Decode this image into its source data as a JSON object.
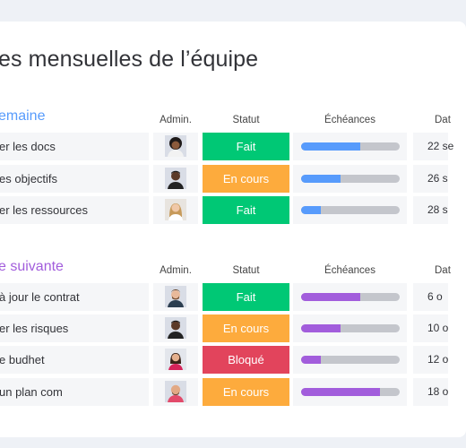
{
  "page": {
    "title": "es mensuelles de l’équipe"
  },
  "colors": {
    "done": "#00c875",
    "in_progress": "#fdab3d",
    "blocked": "#e2445c",
    "blue": "#579bfc",
    "purple": "#a25ddc"
  },
  "columns": {
    "owner": "Admin.",
    "status": "Statut",
    "deadline": "Échéances",
    "date": "Dat"
  },
  "sections": [
    {
      "title": "emaine",
      "color": "#579bfc",
      "rows": [
        {
          "task": "er les docs",
          "owner_icon": "avatar-woman-curly",
          "status": "Fait",
          "status_key": "done",
          "progress": 0.6,
          "date": "22 se"
        },
        {
          "task": "es objectifs",
          "owner_icon": "avatar-man-dark",
          "status": "En cours",
          "status_key": "in_progress",
          "progress": 0.4,
          "date": "26 s"
        },
        {
          "task": "er les ressources",
          "owner_icon": "avatar-woman-blonde",
          "status": "Fait",
          "status_key": "done",
          "progress": 0.2,
          "date": "28 s"
        }
      ]
    },
    {
      "title": "e suivante",
      "color": "#a25ddc",
      "rows": [
        {
          "task": "à jour le contrat",
          "owner_icon": "avatar-man-beard",
          "status": "Fait",
          "status_key": "done",
          "progress": 0.6,
          "date": "6 o"
        },
        {
          "task": "er les risques",
          "owner_icon": "avatar-man-dark",
          "status": "En cours",
          "status_key": "in_progress",
          "progress": 0.4,
          "date": "10 o"
        },
        {
          "task": "e budhet",
          "owner_icon": "avatar-woman-red",
          "status": "Bloqué",
          "status_key": "blocked",
          "progress": 0.2,
          "date": "12 o"
        },
        {
          "task": "un plan com",
          "owner_icon": "avatar-man-bald",
          "status": "En cours",
          "status_key": "in_progress",
          "progress": 0.8,
          "date": "18 o"
        }
      ]
    }
  ]
}
